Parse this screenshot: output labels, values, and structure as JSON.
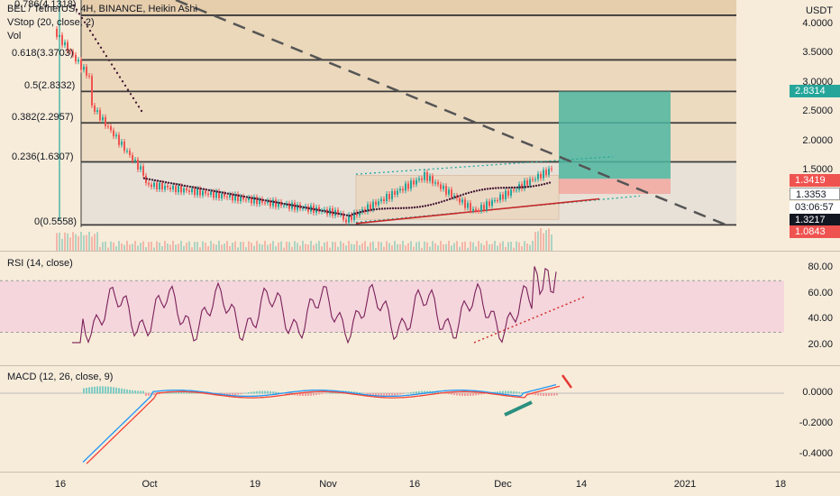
{
  "header": {
    "symbol_line": "BEL / TetherUS, 4H, BINANCE, Heikin Ashi",
    "indicator_vstop": "VStop (20, close, 2)",
    "indicator_vol": "Vol"
  },
  "price_axis": {
    "currency": "USDT",
    "ticks": [
      "4.0000",
      "3.5000",
      "3.0000",
      "2.5000",
      "2.0000",
      "1.5000"
    ]
  },
  "fib_levels": [
    {
      "label": "0.786(4.1318)",
      "value": 4.1318
    },
    {
      "label": "0.618(3.3703)",
      "value": 3.3703
    },
    {
      "label": "0.5(2.8332)",
      "value": 2.8332
    },
    {
      "label": "0.382(2.2957)",
      "value": 2.2957
    },
    {
      "label": "0.236(1.6307)",
      "value": 1.6307
    },
    {
      "label": "0(0.5558)",
      "value": 0.5558
    }
  ],
  "price_tags": [
    {
      "text": "2.8314",
      "color": "#26a69a"
    },
    {
      "text": "1.3419",
      "color": "#ef5350"
    },
    {
      "text": "1.3353",
      "color": "#ffffff"
    },
    {
      "text": "03:06:57",
      "color": "#ffffff"
    },
    {
      "text": "1.3217",
      "color": "#131722"
    },
    {
      "text": "1.0843",
      "color": "#ef5350"
    }
  ],
  "rsi": {
    "title": "RSI (14, close)",
    "ticks": [
      "80.00",
      "60.00",
      "40.00",
      "20.00"
    ]
  },
  "macd": {
    "title": "MACD (12, 26, close, 9)",
    "ticks": [
      "0.0000",
      "-0.2000",
      "-0.4000"
    ]
  },
  "time_axis": {
    "labels": [
      "16",
      "Oct",
      "19",
      "Nov",
      "16",
      "Dec",
      "14",
      "2021",
      "18"
    ]
  },
  "colors": {
    "bull": "#26a69a",
    "bear": "#ef5350",
    "vstop": "#4a1f3a",
    "rsi_line": "#7b1f5a",
    "macd_line": "#2196f3",
    "signal_line": "#f44336",
    "position_target": "#4db6a0",
    "position_stop": "#f2a7a0",
    "trend_dash": "#555555"
  }
}
